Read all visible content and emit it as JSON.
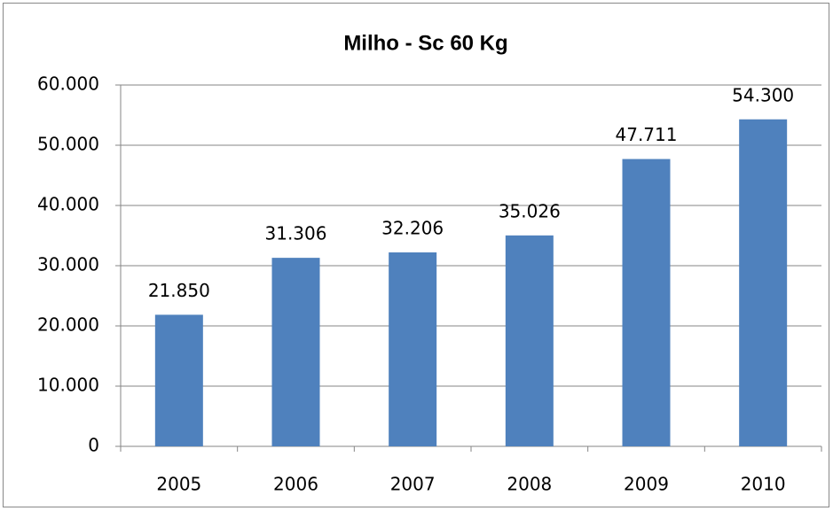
{
  "chart_data": {
    "type": "bar",
    "title": "Milho - Sc 60 Kg",
    "categories": [
      "2005",
      "2006",
      "2007",
      "2008",
      "2009",
      "2010"
    ],
    "values": [
      21850,
      31306,
      32206,
      35026,
      47711,
      54300
    ],
    "value_labels": [
      "21.850",
      "31.306",
      "32.206",
      "35.026",
      "47.711",
      "54.300"
    ],
    "color": "#4f81bd",
    "ylim": [
      0,
      60000
    ],
    "yticks": [
      0,
      {
        "value": 10000,
        "label": "10.000"
      },
      {
        "value": 20000,
        "label": "20.000"
      },
      {
        "value": 30000,
        "label": "30.000"
      },
      {
        "value": 40000,
        "label": "40.000"
      },
      {
        "value": 50000,
        "label": "50.000"
      },
      {
        "value": 60000,
        "label": "60.000"
      }
    ],
    "grid": true
  }
}
